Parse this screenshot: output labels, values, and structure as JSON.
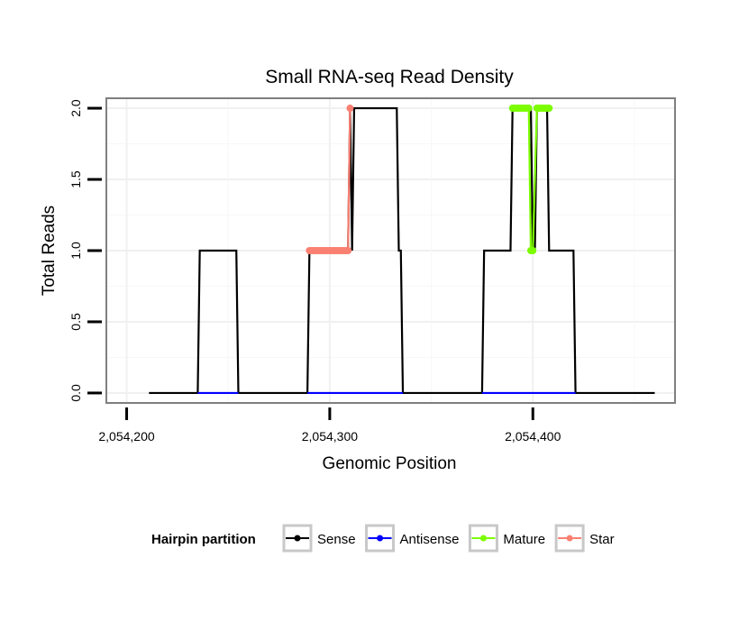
{
  "chart_data": {
    "type": "line",
    "title": "Small RNA-seq Read Density",
    "xlabel": "Genomic Position",
    "ylabel": "Total Reads",
    "xlim": [
      2054190,
      2054470
    ],
    "ylim": [
      -0.07,
      2.07
    ],
    "x_ticks": [
      2054200,
      2054300,
      2054400
    ],
    "x_tick_labels": [
      "2,054,200",
      "2,054,300",
      "2,054,400"
    ],
    "y_ticks": [
      0.0,
      0.5,
      1.0,
      1.5,
      2.0
    ],
    "y_tick_labels": [
      "0.0",
      "0.5",
      "1.0",
      "1.5",
      "2.0"
    ],
    "grid": true,
    "legend": {
      "title": "Hairpin partition",
      "position": "bottom",
      "entries": [
        {
          "name": "Sense",
          "color": "#000000"
        },
        {
          "name": "Antisense",
          "color": "#0000ff"
        },
        {
          "name": "Mature",
          "color": "#7cfc00"
        },
        {
          "name": "Star",
          "color": "#fa8072"
        }
      ]
    },
    "series": [
      {
        "name": "Sense",
        "color": "#000000",
        "points": [
          [
            2054211,
            0
          ],
          [
            2054235,
            0
          ],
          [
            2054236,
            1
          ],
          [
            2054254,
            1
          ],
          [
            2054255,
            0
          ],
          [
            2054289,
            0
          ],
          [
            2054290,
            1
          ],
          [
            2054309,
            1
          ],
          [
            2054310,
            2
          ],
          [
            2054311,
            1
          ],
          [
            2054312,
            2
          ],
          [
            2054333,
            2
          ],
          [
            2054334,
            1
          ],
          [
            2054335,
            1
          ],
          [
            2054336,
            0
          ],
          [
            2054375,
            0
          ],
          [
            2054376,
            1
          ],
          [
            2054389,
            1
          ],
          [
            2054390,
            2
          ],
          [
            2054399,
            2
          ],
          [
            2054400,
            1
          ],
          [
            2054401,
            1
          ],
          [
            2054402,
            2
          ],
          [
            2054407,
            2
          ],
          [
            2054408,
            1
          ],
          [
            2054420,
            1
          ],
          [
            2054421,
            0
          ],
          [
            2054460,
            0
          ]
        ]
      },
      {
        "name": "Antisense",
        "color": "#0000ff",
        "points": [
          [
            2054235,
            0
          ],
          [
            2054255,
            0
          ],
          [
            2054289,
            0
          ],
          [
            2054336,
            0
          ],
          [
            2054375,
            0
          ],
          [
            2054421,
            0
          ]
        ]
      },
      {
        "name": "Mature",
        "color": "#7cfc00",
        "points": [
          [
            2054390,
            2
          ],
          [
            2054391,
            2
          ],
          [
            2054392,
            2
          ],
          [
            2054393,
            2
          ],
          [
            2054394,
            2
          ],
          [
            2054395,
            2
          ],
          [
            2054396,
            2
          ],
          [
            2054397,
            2
          ],
          [
            2054398,
            2
          ],
          [
            2054399,
            1
          ],
          [
            2054400,
            1
          ],
          [
            2054402,
            2
          ],
          [
            2054403,
            2
          ],
          [
            2054404,
            2
          ],
          [
            2054405,
            2
          ],
          [
            2054406,
            2
          ],
          [
            2054407,
            2
          ],
          [
            2054408,
            2
          ]
        ]
      },
      {
        "name": "Star",
        "color": "#fa8072",
        "points": [
          [
            2054290,
            1
          ],
          [
            2054291,
            1
          ],
          [
            2054292,
            1
          ],
          [
            2054293,
            1
          ],
          [
            2054294,
            1
          ],
          [
            2054295,
            1
          ],
          [
            2054296,
            1
          ],
          [
            2054297,
            1
          ],
          [
            2054298,
            1
          ],
          [
            2054299,
            1
          ],
          [
            2054300,
            1
          ],
          [
            2054301,
            1
          ],
          [
            2054302,
            1
          ],
          [
            2054303,
            1
          ],
          [
            2054304,
            1
          ],
          [
            2054305,
            1
          ],
          [
            2054306,
            1
          ],
          [
            2054307,
            1
          ],
          [
            2054308,
            1
          ],
          [
            2054309,
            1
          ],
          [
            2054310,
            2
          ]
        ]
      }
    ]
  }
}
